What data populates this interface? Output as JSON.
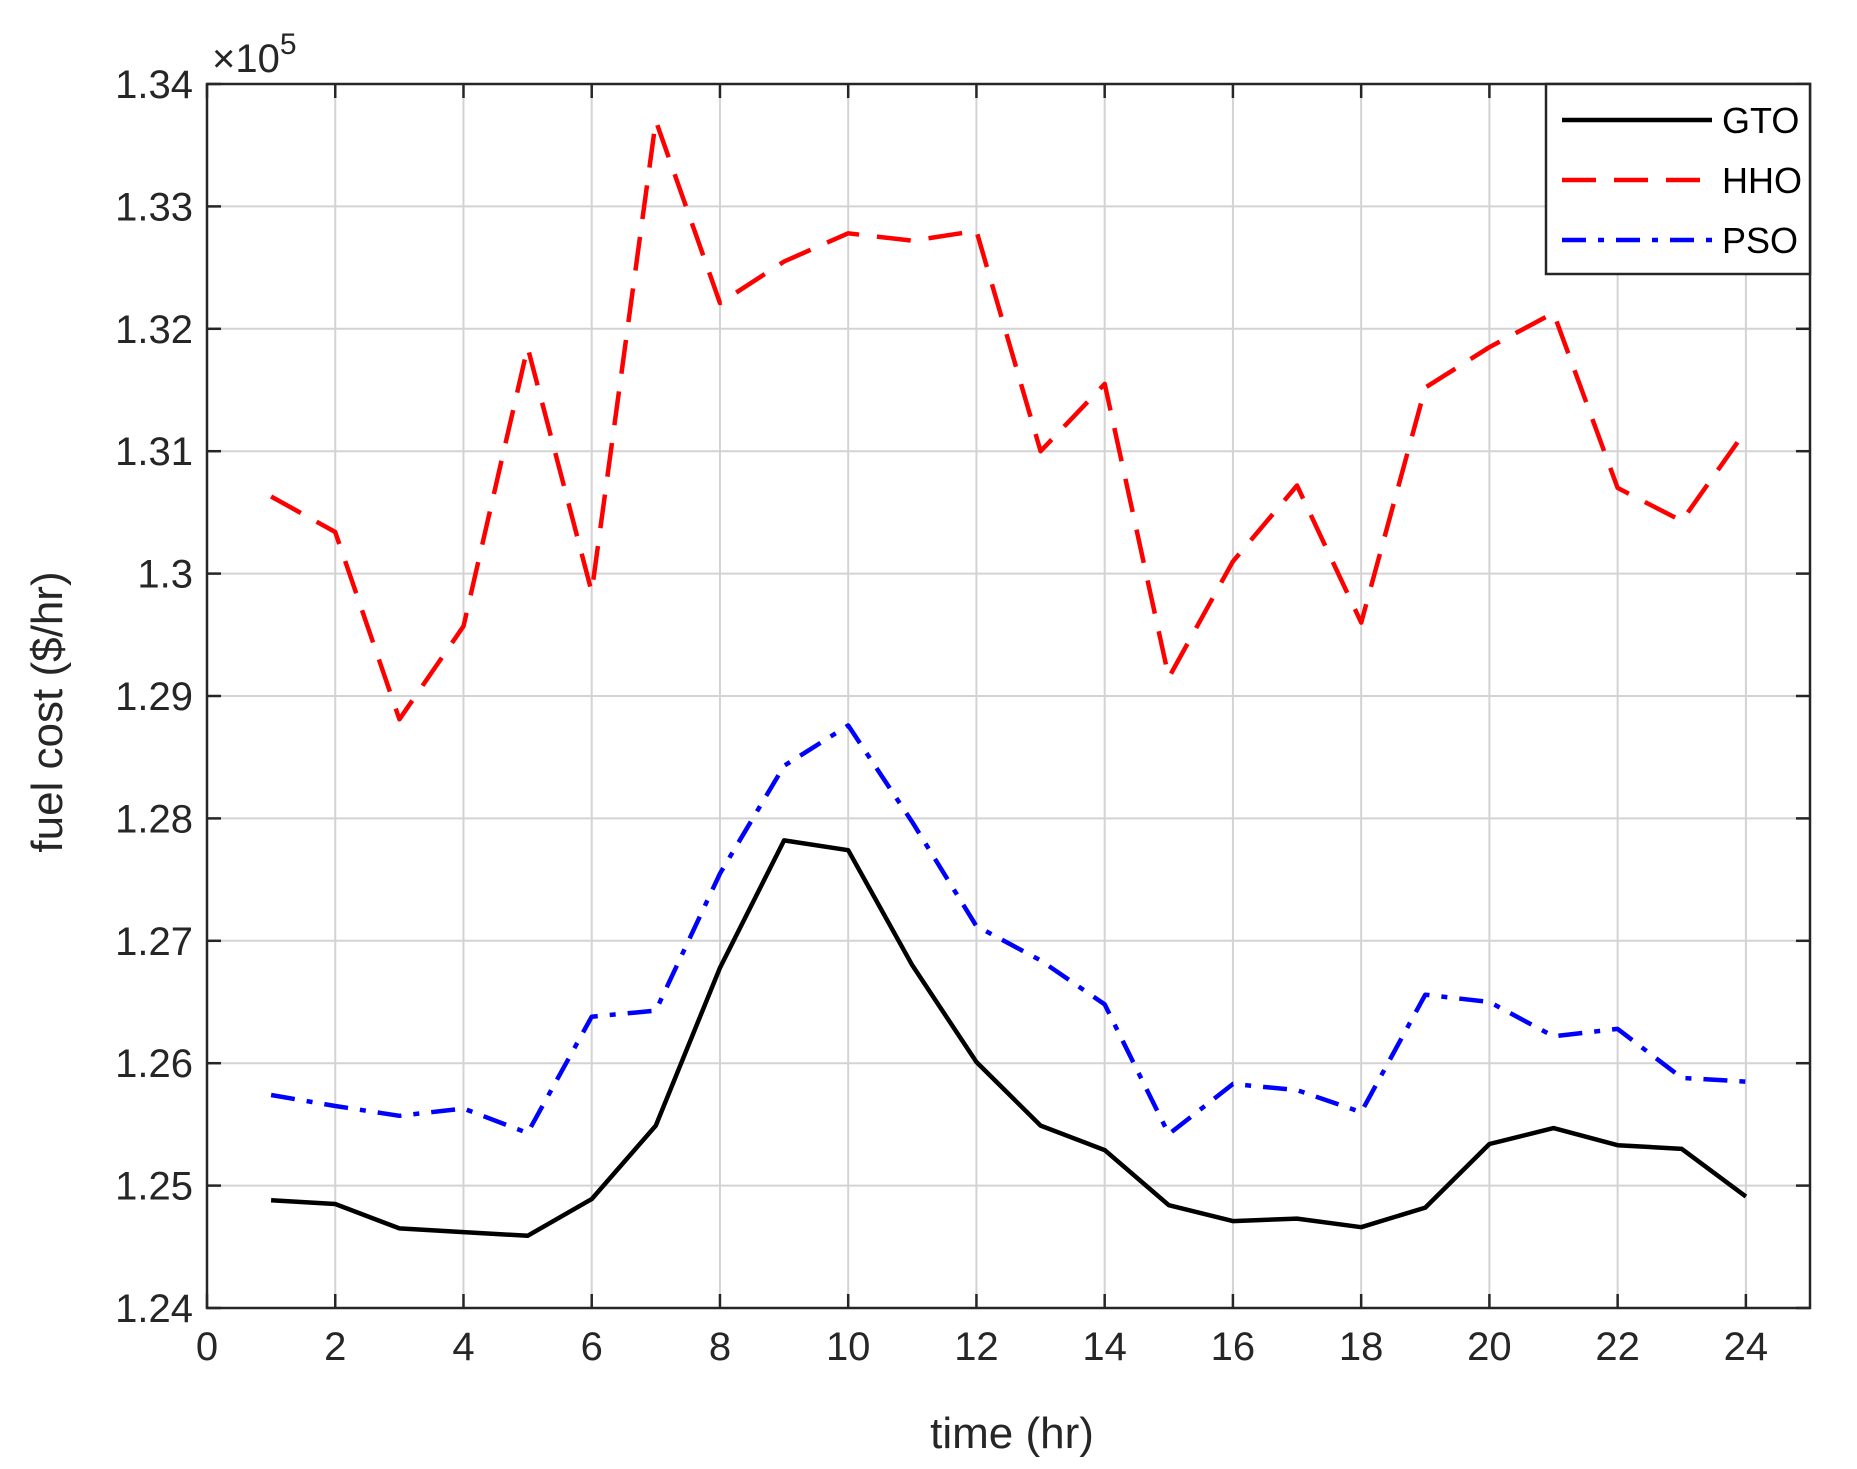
{
  "chart_data": {
    "type": "line",
    "xlabel": "time (hr)",
    "ylabel": "fuel cost ($/hr)",
    "exponent_prefix": "×10",
    "exponent_power": "5",
    "xlim": [
      0,
      25
    ],
    "ylim": [
      1.24,
      1.34
    ],
    "xticks": [
      0,
      2,
      4,
      6,
      8,
      10,
      12,
      14,
      16,
      18,
      20,
      22,
      24
    ],
    "xtick_labels": [
      "0",
      "2",
      "4",
      "6",
      "8",
      "10",
      "12",
      "14",
      "16",
      "18",
      "20",
      "22",
      "24"
    ],
    "yticks": [
      1.24,
      1.25,
      1.26,
      1.27,
      1.28,
      1.29,
      1.3,
      1.31,
      1.32,
      1.33,
      1.34
    ],
    "ytick_labels": [
      "1.24",
      "1.25",
      "1.26",
      "1.27",
      "1.28",
      "1.29",
      "1.3",
      "1.31",
      "1.32",
      "1.33",
      "1.34"
    ],
    "grid": true,
    "legend_position": "top-right",
    "x": [
      1,
      2,
      3,
      4,
      5,
      6,
      7,
      8,
      9,
      10,
      11,
      12,
      13,
      14,
      15,
      16,
      17,
      18,
      19,
      20,
      21,
      22,
      23,
      24
    ],
    "series": [
      {
        "name": "GTO",
        "color": "#000000",
        "style": "solid",
        "values": [
          1.2488,
          1.2485,
          1.2465,
          1.2462,
          1.2459,
          1.2489,
          1.2549,
          1.2678,
          1.2782,
          1.2774,
          1.268,
          1.2601,
          1.2549,
          1.2529,
          1.2484,
          1.2471,
          1.2473,
          1.2466,
          1.2482,
          1.2534,
          1.2547,
          1.2533,
          1.253,
          1.2491
        ]
      },
      {
        "name": "HHO",
        "color": "#ff0000",
        "style": "dashed",
        "values": [
          1.3063,
          1.3034,
          1.2881,
          1.2957,
          1.3185,
          1.2985,
          1.337,
          1.3221,
          1.3255,
          1.3278,
          1.3272,
          1.328,
          1.31,
          1.3155,
          1.2915,
          1.301,
          1.3072,
          1.296,
          1.3152,
          1.3185,
          1.3213,
          1.307,
          1.3043,
          1.3117
        ]
      },
      {
        "name": "PSO",
        "color": "#0000ff",
        "style": "dashdot",
        "values": [
          1.2574,
          1.2565,
          1.2557,
          1.2563,
          1.2543,
          1.2638,
          1.2643,
          1.2755,
          1.2843,
          1.2876,
          1.2797,
          1.2712,
          1.2684,
          1.2648,
          1.2542,
          1.2583,
          1.2578,
          1.256,
          1.2656,
          1.265,
          1.2622,
          1.2628,
          1.2588,
          1.2585
        ]
      }
    ]
  }
}
